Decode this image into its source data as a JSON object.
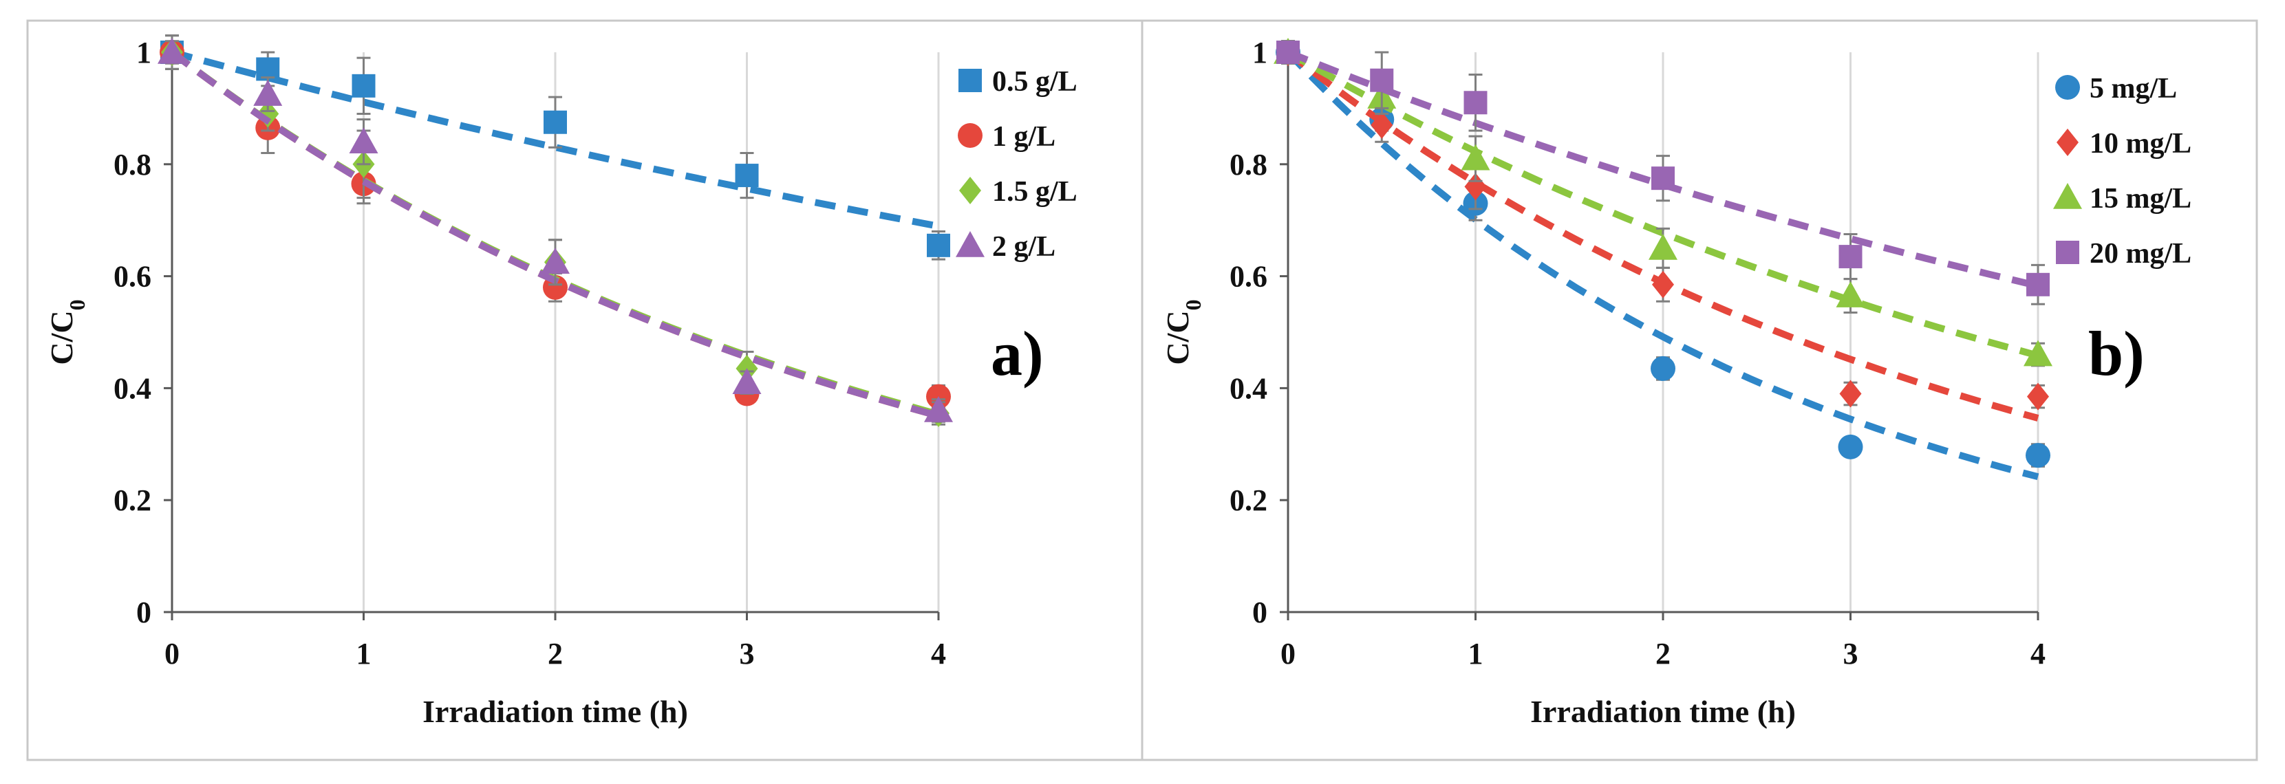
{
  "colors": {
    "blue": "#2E86C8",
    "red": "#E5473C",
    "green": "#8CC63F",
    "purple": "#9966B3",
    "grid": "#D9D9D9",
    "frame": "#C8C8C8"
  },
  "chart_data": [
    {
      "type": "scatter",
      "panel_label": "a)",
      "xlabel": "Irradiation time (h)",
      "ylabel": {
        "main": "C/C",
        "sub": "0"
      },
      "xlim": [
        0,
        4
      ],
      "ylim": [
        0,
        1
      ],
      "xticks": [
        "0",
        "1",
        "2",
        "3",
        "4"
      ],
      "yticks": [
        "0",
        "0.2",
        "0.4",
        "0.6",
        "0.8",
        "1"
      ],
      "grid": "vertical",
      "legend_position": "top-right",
      "series": [
        {
          "name": "0.5 g/L",
          "color": "blue",
          "marker": "square",
          "k": 0.093,
          "x": [
            0,
            0.5,
            1,
            2,
            3,
            4
          ],
          "y": [
            1.0,
            0.97,
            0.94,
            0.875,
            0.78,
            0.655
          ],
          "err": [
            0.03,
            0.03,
            0.05,
            0.045,
            0.04,
            0.025
          ]
        },
        {
          "name": "1  g/L",
          "color": "red",
          "marker": "circle",
          "k": 0.262,
          "x": [
            0,
            0.5,
            1,
            2,
            3,
            4
          ],
          "y": [
            1.0,
            0.865,
            0.765,
            0.58,
            0.39,
            0.385
          ],
          "err": [
            0.03,
            0.045,
            0.035,
            0.025,
            0.015,
            0.02
          ]
        },
        {
          "name": "1.5  g/L",
          "color": "green",
          "marker": "diamond",
          "k": 0.26,
          "x": [
            0,
            0.5,
            1,
            2,
            3,
            4
          ],
          "y": [
            1.0,
            0.89,
            0.8,
            0.625,
            0.435,
            0.355
          ],
          "err": [
            0.03,
            0.03,
            0.06,
            0.04,
            0.03,
            0.02
          ]
        },
        {
          "name": "2  g/L",
          "color": "purple",
          "marker": "triangle",
          "k": 0.262,
          "x": [
            0,
            0.5,
            1,
            2,
            3,
            4
          ],
          "y": [
            1.0,
            0.925,
            0.84,
            0.625,
            0.41,
            0.36
          ],
          "err": [
            0.02,
            0.03,
            0.04,
            0.04,
            0.02,
            0.02
          ]
        }
      ]
    },
    {
      "type": "scatter",
      "panel_label": "b)",
      "xlabel": "Irradiation time (h)",
      "ylabel": {
        "main": "C/C",
        "sub": "0"
      },
      "xlim": [
        0,
        4
      ],
      "ylim": [
        0,
        1
      ],
      "xticks": [
        "0",
        "1",
        "2",
        "3",
        "4"
      ],
      "yticks": [
        "0",
        "0.2",
        "0.4",
        "0.6",
        "0.8",
        "1"
      ],
      "grid": "vertical",
      "legend_position": "top-right",
      "series": [
        {
          "name": "5 mg/L",
          "color": "blue",
          "marker": "circle",
          "k": 0.355,
          "x": [
            0,
            0.5,
            1,
            2,
            3,
            4
          ],
          "y": [
            1.0,
            0.88,
            0.73,
            0.435,
            0.295,
            0.28
          ],
          "err": [
            0.02,
            0.02,
            0.03,
            0.02,
            0.015,
            0.02
          ]
        },
        {
          "name": "10 mg/L",
          "color": "red",
          "marker": "diamond",
          "k": 0.265,
          "x": [
            0,
            0.5,
            1,
            2,
            3,
            4
          ],
          "y": [
            1.0,
            0.87,
            0.76,
            0.585,
            0.39,
            0.385
          ],
          "err": [
            0.02,
            0.03,
            0.04,
            0.03,
            0.02,
            0.02
          ]
        },
        {
          "name": "15 mg/L",
          "color": "green",
          "marker": "triangle",
          "k": 0.195,
          "x": [
            0,
            0.5,
            1,
            2,
            3,
            4
          ],
          "y": [
            1.0,
            0.92,
            0.81,
            0.65,
            0.565,
            0.46
          ],
          "err": [
            0.02,
            0.03,
            0.04,
            0.035,
            0.03,
            0.02
          ]
        },
        {
          "name": "20 mg/L",
          "color": "purple",
          "marker": "square",
          "k": 0.135,
          "x": [
            0,
            0.5,
            1,
            2,
            3,
            4
          ],
          "y": [
            1.0,
            0.95,
            0.91,
            0.775,
            0.635,
            0.585
          ],
          "err": [
            0.02,
            0.05,
            0.05,
            0.04,
            0.04,
            0.035
          ]
        }
      ]
    }
  ]
}
